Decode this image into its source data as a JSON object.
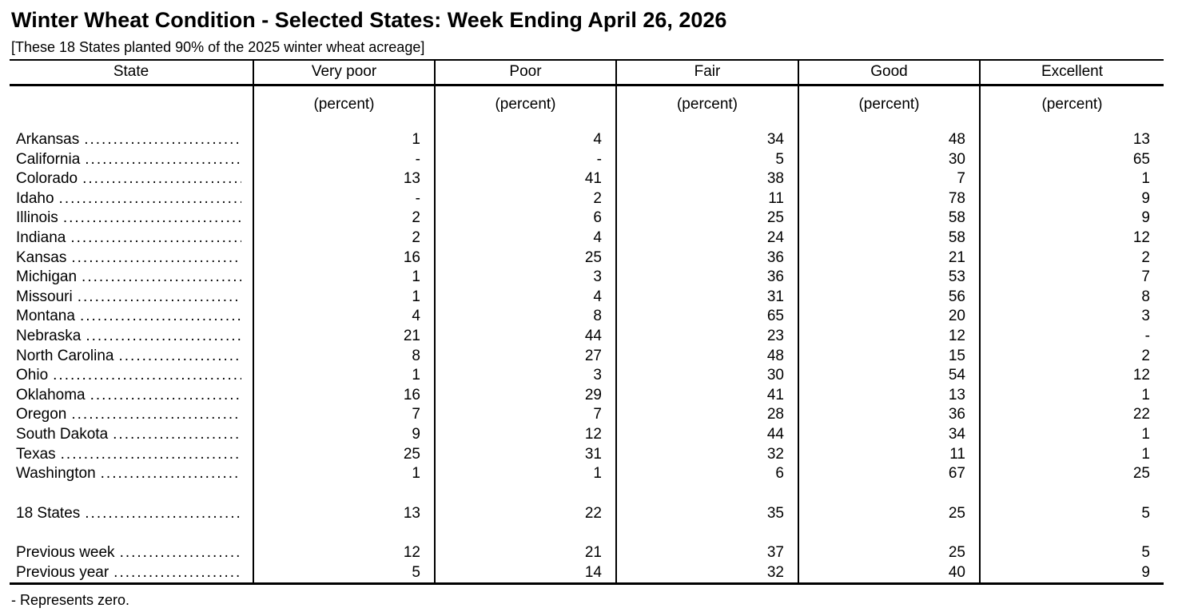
{
  "title": "Winter Wheat Condition - Selected States: Week Ending April 26, 2026",
  "subtitle": "[These 18 States planted 90% of the 2025 winter wheat acreage]",
  "footnote": "- Represents zero.",
  "table": {
    "columns": [
      "State",
      "Very poor",
      "Poor",
      "Fair",
      "Good",
      "Excellent"
    ],
    "unit_label": "(percent)",
    "rows": [
      {
        "state": "Arkansas",
        "values": [
          "1",
          "4",
          "34",
          "48",
          "13"
        ]
      },
      {
        "state": "California",
        "values": [
          "-",
          "-",
          "5",
          "30",
          "65"
        ]
      },
      {
        "state": "Colorado",
        "values": [
          "13",
          "41",
          "38",
          "7",
          "1"
        ]
      },
      {
        "state": "Idaho",
        "values": [
          "-",
          "2",
          "11",
          "78",
          "9"
        ]
      },
      {
        "state": "Illinois",
        "values": [
          "2",
          "6",
          "25",
          "58",
          "9"
        ]
      },
      {
        "state": "Indiana",
        "values": [
          "2",
          "4",
          "24",
          "58",
          "12"
        ]
      },
      {
        "state": "Kansas",
        "values": [
          "16",
          "25",
          "36",
          "21",
          "2"
        ]
      },
      {
        "state": "Michigan",
        "values": [
          "1",
          "3",
          "36",
          "53",
          "7"
        ]
      },
      {
        "state": "Missouri",
        "values": [
          "1",
          "4",
          "31",
          "56",
          "8"
        ]
      },
      {
        "state": "Montana",
        "values": [
          "4",
          "8",
          "65",
          "20",
          "3"
        ]
      },
      {
        "state": "Nebraska",
        "values": [
          "21",
          "44",
          "23",
          "12",
          "-"
        ]
      },
      {
        "state": "North Carolina",
        "values": [
          "8",
          "27",
          "48",
          "15",
          "2"
        ]
      },
      {
        "state": "Ohio",
        "values": [
          "1",
          "3",
          "30",
          "54",
          "12"
        ]
      },
      {
        "state": "Oklahoma",
        "values": [
          "16",
          "29",
          "41",
          "13",
          "1"
        ]
      },
      {
        "state": "Oregon",
        "values": [
          "7",
          "7",
          "28",
          "36",
          "22"
        ]
      },
      {
        "state": "South Dakota",
        "values": [
          "9",
          "12",
          "44",
          "34",
          "1"
        ]
      },
      {
        "state": "Texas",
        "values": [
          "25",
          "31",
          "32",
          "11",
          "1"
        ]
      },
      {
        "state": "Washington",
        "values": [
          "1",
          "1",
          "6",
          "67",
          "25"
        ]
      }
    ],
    "summary_rows": [
      {
        "state": "18 States",
        "values": [
          "13",
          "22",
          "35",
          "25",
          "5"
        ],
        "gap_before": true
      },
      {
        "state": "Previous week",
        "values": [
          "12",
          "21",
          "37",
          "25",
          "5"
        ],
        "gap_before": true
      },
      {
        "state": "Previous year",
        "values": [
          "5",
          "14",
          "32",
          "40",
          "9"
        ],
        "gap_before": false
      }
    ]
  },
  "chart_data": {
    "type": "table",
    "title": "Winter Wheat Condition - Selected States: Week Ending April 26, 2026",
    "unit": "percent",
    "categories": [
      "Very poor",
      "Poor",
      "Fair",
      "Good",
      "Excellent"
    ],
    "series": [
      {
        "name": "Arkansas",
        "values": [
          1,
          4,
          34,
          48,
          13
        ]
      },
      {
        "name": "California",
        "values": [
          0,
          0,
          5,
          30,
          65
        ]
      },
      {
        "name": "Colorado",
        "values": [
          13,
          41,
          38,
          7,
          1
        ]
      },
      {
        "name": "Idaho",
        "values": [
          0,
          2,
          11,
          78,
          9
        ]
      },
      {
        "name": "Illinois",
        "values": [
          2,
          6,
          25,
          58,
          9
        ]
      },
      {
        "name": "Indiana",
        "values": [
          2,
          4,
          24,
          58,
          12
        ]
      },
      {
        "name": "Kansas",
        "values": [
          16,
          25,
          36,
          21,
          2
        ]
      },
      {
        "name": "Michigan",
        "values": [
          1,
          3,
          36,
          53,
          7
        ]
      },
      {
        "name": "Missouri",
        "values": [
          1,
          4,
          31,
          56,
          8
        ]
      },
      {
        "name": "Montana",
        "values": [
          4,
          8,
          65,
          20,
          3
        ]
      },
      {
        "name": "Nebraska",
        "values": [
          21,
          44,
          23,
          12,
          0
        ]
      },
      {
        "name": "North Carolina",
        "values": [
          8,
          27,
          48,
          15,
          2
        ]
      },
      {
        "name": "Ohio",
        "values": [
          1,
          3,
          30,
          54,
          12
        ]
      },
      {
        "name": "Oklahoma",
        "values": [
          16,
          29,
          41,
          13,
          1
        ]
      },
      {
        "name": "Oregon",
        "values": [
          7,
          7,
          28,
          36,
          22
        ]
      },
      {
        "name": "South Dakota",
        "values": [
          9,
          12,
          44,
          34,
          1
        ]
      },
      {
        "name": "Texas",
        "values": [
          25,
          31,
          32,
          11,
          1
        ]
      },
      {
        "name": "Washington",
        "values": [
          1,
          1,
          6,
          67,
          25
        ]
      },
      {
        "name": "18 States",
        "values": [
          13,
          22,
          35,
          25,
          5
        ]
      },
      {
        "name": "Previous week",
        "values": [
          12,
          21,
          37,
          25,
          5
        ]
      },
      {
        "name": "Previous year",
        "values": [
          5,
          14,
          32,
          40,
          9
        ]
      }
    ]
  }
}
